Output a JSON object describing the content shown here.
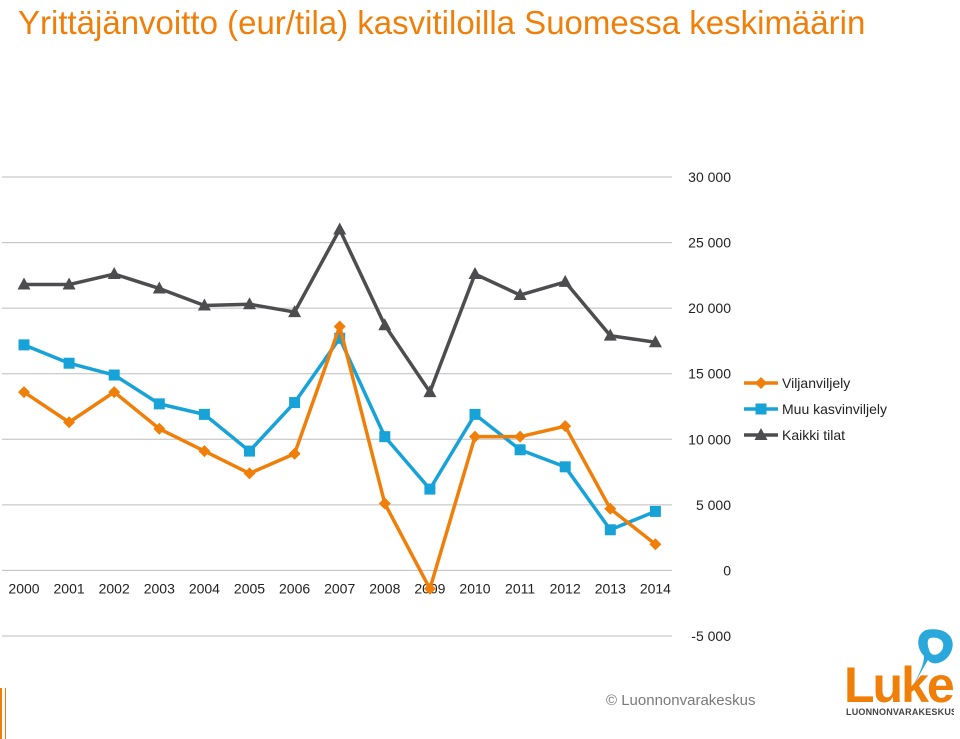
{
  "title": "Yrittäjänvoitto (eur/tila) kasvitiloilla Suomessa keskimäärin",
  "copyright": "© Luonnonvarakeskus",
  "logo": {
    "word": "Luke",
    "tagline": "LUONNONVARAKESKUS",
    "accent": "#F07F09",
    "leaf": "#2AA8DC"
  },
  "chart_data": {
    "type": "line",
    "title": "Yrittäjänvoitto (eur/tila) kasvitiloilla Suomessa keskimäärin",
    "xlabel": "",
    "ylabel": "",
    "categories": [
      "2000",
      "2001",
      "2002",
      "2003",
      "2004",
      "2005",
      "2006",
      "2007",
      "2008",
      "2009",
      "2010",
      "2011",
      "2012",
      "2013",
      "2014"
    ],
    "ylim": [
      -5000,
      30000
    ],
    "yticks": [
      30000,
      25000,
      20000,
      15000,
      10000,
      5000,
      0,
      -5000
    ],
    "ytick_labels": [
      "30 000",
      "25 000",
      "20 000",
      "15 000",
      "10 000",
      "5 000",
      "0",
      "-5 000"
    ],
    "y_axis_side": "right",
    "grid": true,
    "legend_position": "right",
    "series": [
      {
        "name": "Viljanviljely",
        "color": "#F07F09",
        "marker": "diamond",
        "values": [
          13600,
          11300,
          13600,
          10800,
          9100,
          7400,
          8900,
          18600,
          5100,
          -1400,
          10200,
          10200,
          11000,
          4700,
          2000
        ]
      },
      {
        "name": "Muu kasvinviljely",
        "color": "#17A3D8",
        "marker": "square",
        "values": [
          17200,
          15800,
          14900,
          12700,
          11900,
          9100,
          12800,
          17700,
          10200,
          6200,
          11900,
          9200,
          7900,
          3100,
          4500
        ]
      },
      {
        "name": "Kaikki tilat",
        "color": "#4D4D4F",
        "marker": "triangle",
        "values": [
          21800,
          21800,
          22600,
          21500,
          20200,
          20300,
          19700,
          26000,
          18700,
          13600,
          22600,
          21000,
          22000,
          17900,
          17400
        ]
      }
    ]
  }
}
